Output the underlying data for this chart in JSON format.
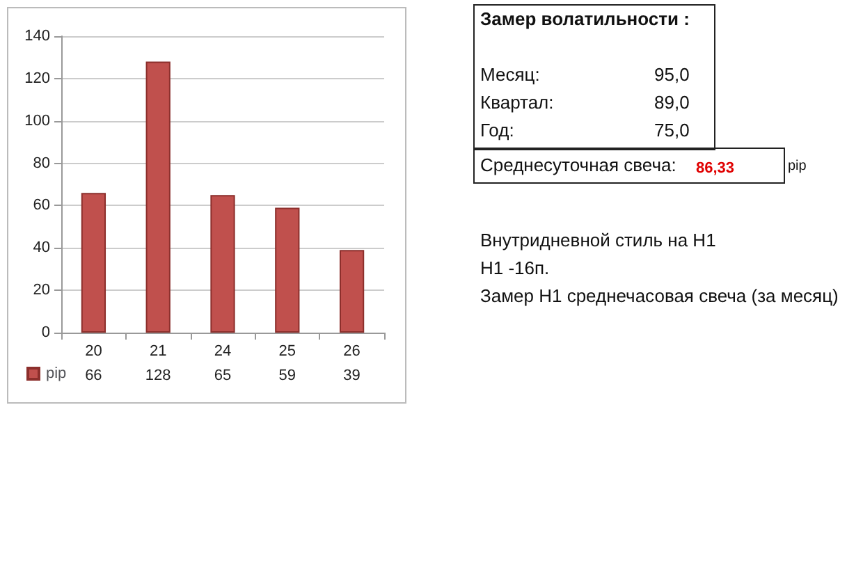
{
  "chart_data": {
    "type": "bar",
    "categories": [
      "20",
      "21",
      "24",
      "25",
      "26"
    ],
    "series": [
      {
        "name": "pip",
        "color": "#c0504d",
        "values": [
          66,
          128,
          65,
          59,
          39
        ]
      }
    ],
    "ylim": [
      0,
      140
    ],
    "yticks": [
      0,
      20,
      40,
      60,
      80,
      100,
      120,
      140
    ],
    "grid": "y",
    "legend": "bottom left",
    "data_labels": true,
    "annotations": [
      "Замер  волатильности  :",
      "Месяц:",
      "95,0",
      "Квартал:",
      "89,0",
      "Год:",
      "75,0",
      "Среднесуточная свеча:",
      "86,33",
      "pip",
      "Внутридневной стиль на H1",
      "H1 -16п.",
      "Замер H1 среднечасовая свеча (за месяц)"
    ]
  }
}
